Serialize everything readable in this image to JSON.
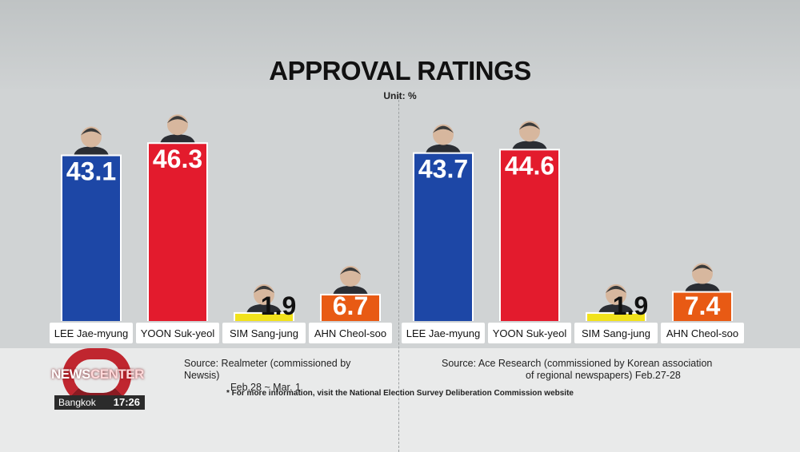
{
  "title": "APPROVAL RATINGS",
  "unit": "Unit: %",
  "chart_data": [
    {
      "type": "bar",
      "title": "APPROVAL RATINGS",
      "ylabel": "Unit: %",
      "categories": [
        "LEE Jae-myung",
        "YOON Suk-yeol",
        "SIM Sang-jung",
        "AHN Cheol-soo"
      ],
      "values": [
        43.1,
        46.3,
        1.9,
        6.7
      ],
      "value_labels": [
        "43.1",
        "46.3",
        "1.9",
        "6.7"
      ],
      "colors": [
        "#1d47a6",
        "#e31b2d",
        "#f1e21c",
        "#e85a14"
      ],
      "source": [
        "Source:  Realmeter (commissioned by Newsis)",
        "Feb.28 ~ Mar. 1"
      ]
    },
    {
      "type": "bar",
      "title": "APPROVAL RATINGS",
      "ylabel": "Unit: %",
      "categories": [
        "LEE Jae-myung",
        "YOON Suk-yeol",
        "SIM Sang-jung",
        "AHN Cheol-soo"
      ],
      "values": [
        43.7,
        44.6,
        1.9,
        7.4
      ],
      "value_labels": [
        "43.7",
        "44.6",
        "1.9",
        "7.4"
      ],
      "colors": [
        "#1d47a6",
        "#e31b2d",
        "#f1e21c",
        "#e85a14"
      ],
      "source": [
        "Source:  Ace Research (commissioned by Korean association",
        "of regional newspapers) Feb.27-28"
      ]
    }
  ],
  "footnote": "* For more information, visit the National Election Survey Deliberation Commission website",
  "logo": {
    "news": "NEWS",
    "center": "CENTER"
  },
  "clock": {
    "city": "Bangkok",
    "time": "17:26"
  }
}
